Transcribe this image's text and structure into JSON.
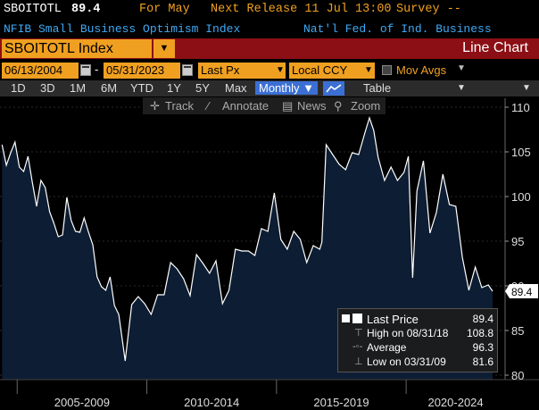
{
  "header": {
    "ticker": "SBOITOTL",
    "last_value": "89.4",
    "for_period": "For May",
    "next_release": "Next Release 11 Jul 13:00",
    "survey": "Survey --",
    "description": "NFIB Small Business Optimism Index",
    "source": "Nat'l Fed. of Ind. Business"
  },
  "title_bar": {
    "security": "SBOITOTL Index",
    "chart_type": "Line Chart"
  },
  "params": {
    "start_date": "06/13/2004",
    "end_date": "05/31/2023",
    "field": "Last Px",
    "currency": "Local CCY",
    "mov_avgs_label": "Mov Avgs"
  },
  "periods": {
    "items": [
      "1D",
      "3D",
      "1M",
      "6M",
      "YTD",
      "1Y",
      "5Y",
      "Max"
    ],
    "frequency": "Monthly",
    "view": "Table"
  },
  "tools": {
    "track": "Track",
    "annotate": "Annotate",
    "news": "News",
    "zoom": "Zoom"
  },
  "legend": {
    "last_price_label": "Last Price",
    "last_price_value": "89.4",
    "high_label": "High on 08/31/18",
    "high_value": "108.8",
    "average_label": "Average",
    "average_value": "96.3",
    "low_label": "Low on 03/31/09",
    "low_value": "81.6"
  },
  "colors": {
    "header_label": "#f0a020",
    "subheader": "#3fa9f5",
    "title_bar": "#8b0f14",
    "input_fill": "#f0a020",
    "selected": "#3b6fd4",
    "area_fill": "#0d1d33",
    "line": "#ffffff"
  },
  "chart_data": {
    "type": "area",
    "title": "",
    "xlabel": "",
    "ylabel": "",
    "ylim": [
      79.5,
      111
    ],
    "y_ticks": [
      80,
      85,
      90,
      95,
      100,
      105,
      110
    ],
    "x_bands": [
      "2005-2009",
      "2010-2014",
      "2015-2019",
      "2020-2024"
    ],
    "last_value_label": "89.4",
    "series": [
      {
        "x": [
          "2004-06",
          "2004-08",
          "2004-10",
          "2004-12",
          "2005-02",
          "2005-04",
          "2005-06",
          "2005-08",
          "2005-10",
          "2005-12",
          "2006-02",
          "2006-04",
          "2006-06",
          "2006-08",
          "2006-10",
          "2006-12",
          "2007-02",
          "2007-04",
          "2007-06",
          "2007-08",
          "2007-10",
          "2007-12",
          "2008-02",
          "2008-04",
          "2008-06",
          "2008-08",
          "2008-10",
          "2008-12",
          "2009-03",
          "2009-06",
          "2009-09",
          "2009-12",
          "2010-03",
          "2010-06",
          "2010-09",
          "2010-12",
          "2011-03",
          "2011-06",
          "2011-09",
          "2011-12",
          "2012-03",
          "2012-06",
          "2012-09",
          "2012-12",
          "2013-03",
          "2013-06",
          "2013-09",
          "2013-12",
          "2014-03",
          "2014-06",
          "2014-09",
          "2014-12",
          "2015-03",
          "2015-06",
          "2015-09",
          "2015-12",
          "2016-03",
          "2016-06",
          "2016-09",
          "2016-10",
          "2016-12",
          "2017-03",
          "2017-06",
          "2017-09",
          "2017-12",
          "2018-03",
          "2018-06",
          "2018-08",
          "2018-10",
          "2018-12",
          "2019-03",
          "2019-06",
          "2019-09",
          "2019-12",
          "2020-02",
          "2020-04",
          "2020-06",
          "2020-09",
          "2020-12",
          "2021-03",
          "2021-06",
          "2021-09",
          "2021-12",
          "2022-03",
          "2022-06",
          "2022-09",
          "2022-12",
          "2023-03",
          "2023-05"
        ],
        "values": [
          105.8,
          103.5,
          104.9,
          106.1,
          103.3,
          102.8,
          104.5,
          101.6,
          98.9,
          101.8,
          101.0,
          98.3,
          97.0,
          95.5,
          95.7,
          99.9,
          97.3,
          96.1,
          96.0,
          97.6,
          96.0,
          94.6,
          91.0,
          89.9,
          89.5,
          91.0,
          87.8,
          86.8,
          81.6,
          87.9,
          88.8,
          88.0,
          86.8,
          89.0,
          89.0,
          92.6,
          91.9,
          90.8,
          88.9,
          93.5,
          92.5,
          91.4,
          92.8,
          88.0,
          89.5,
          94.1,
          93.9,
          93.9,
          93.4,
          96.4,
          96.1,
          100.4,
          95.2,
          94.1,
          96.1,
          95.2,
          92.6,
          94.5,
          94.1,
          94.9,
          105.8,
          104.7,
          103.6,
          103.0,
          104.9,
          104.7,
          107.2,
          108.8,
          107.4,
          104.4,
          101.8,
          103.3,
          101.8,
          102.7,
          104.5,
          90.9,
          100.6,
          104.0,
          95.9,
          98.2,
          102.5,
          99.1,
          98.9,
          93.2,
          89.5,
          92.1,
          89.8,
          90.1,
          89.4
        ]
      }
    ]
  }
}
